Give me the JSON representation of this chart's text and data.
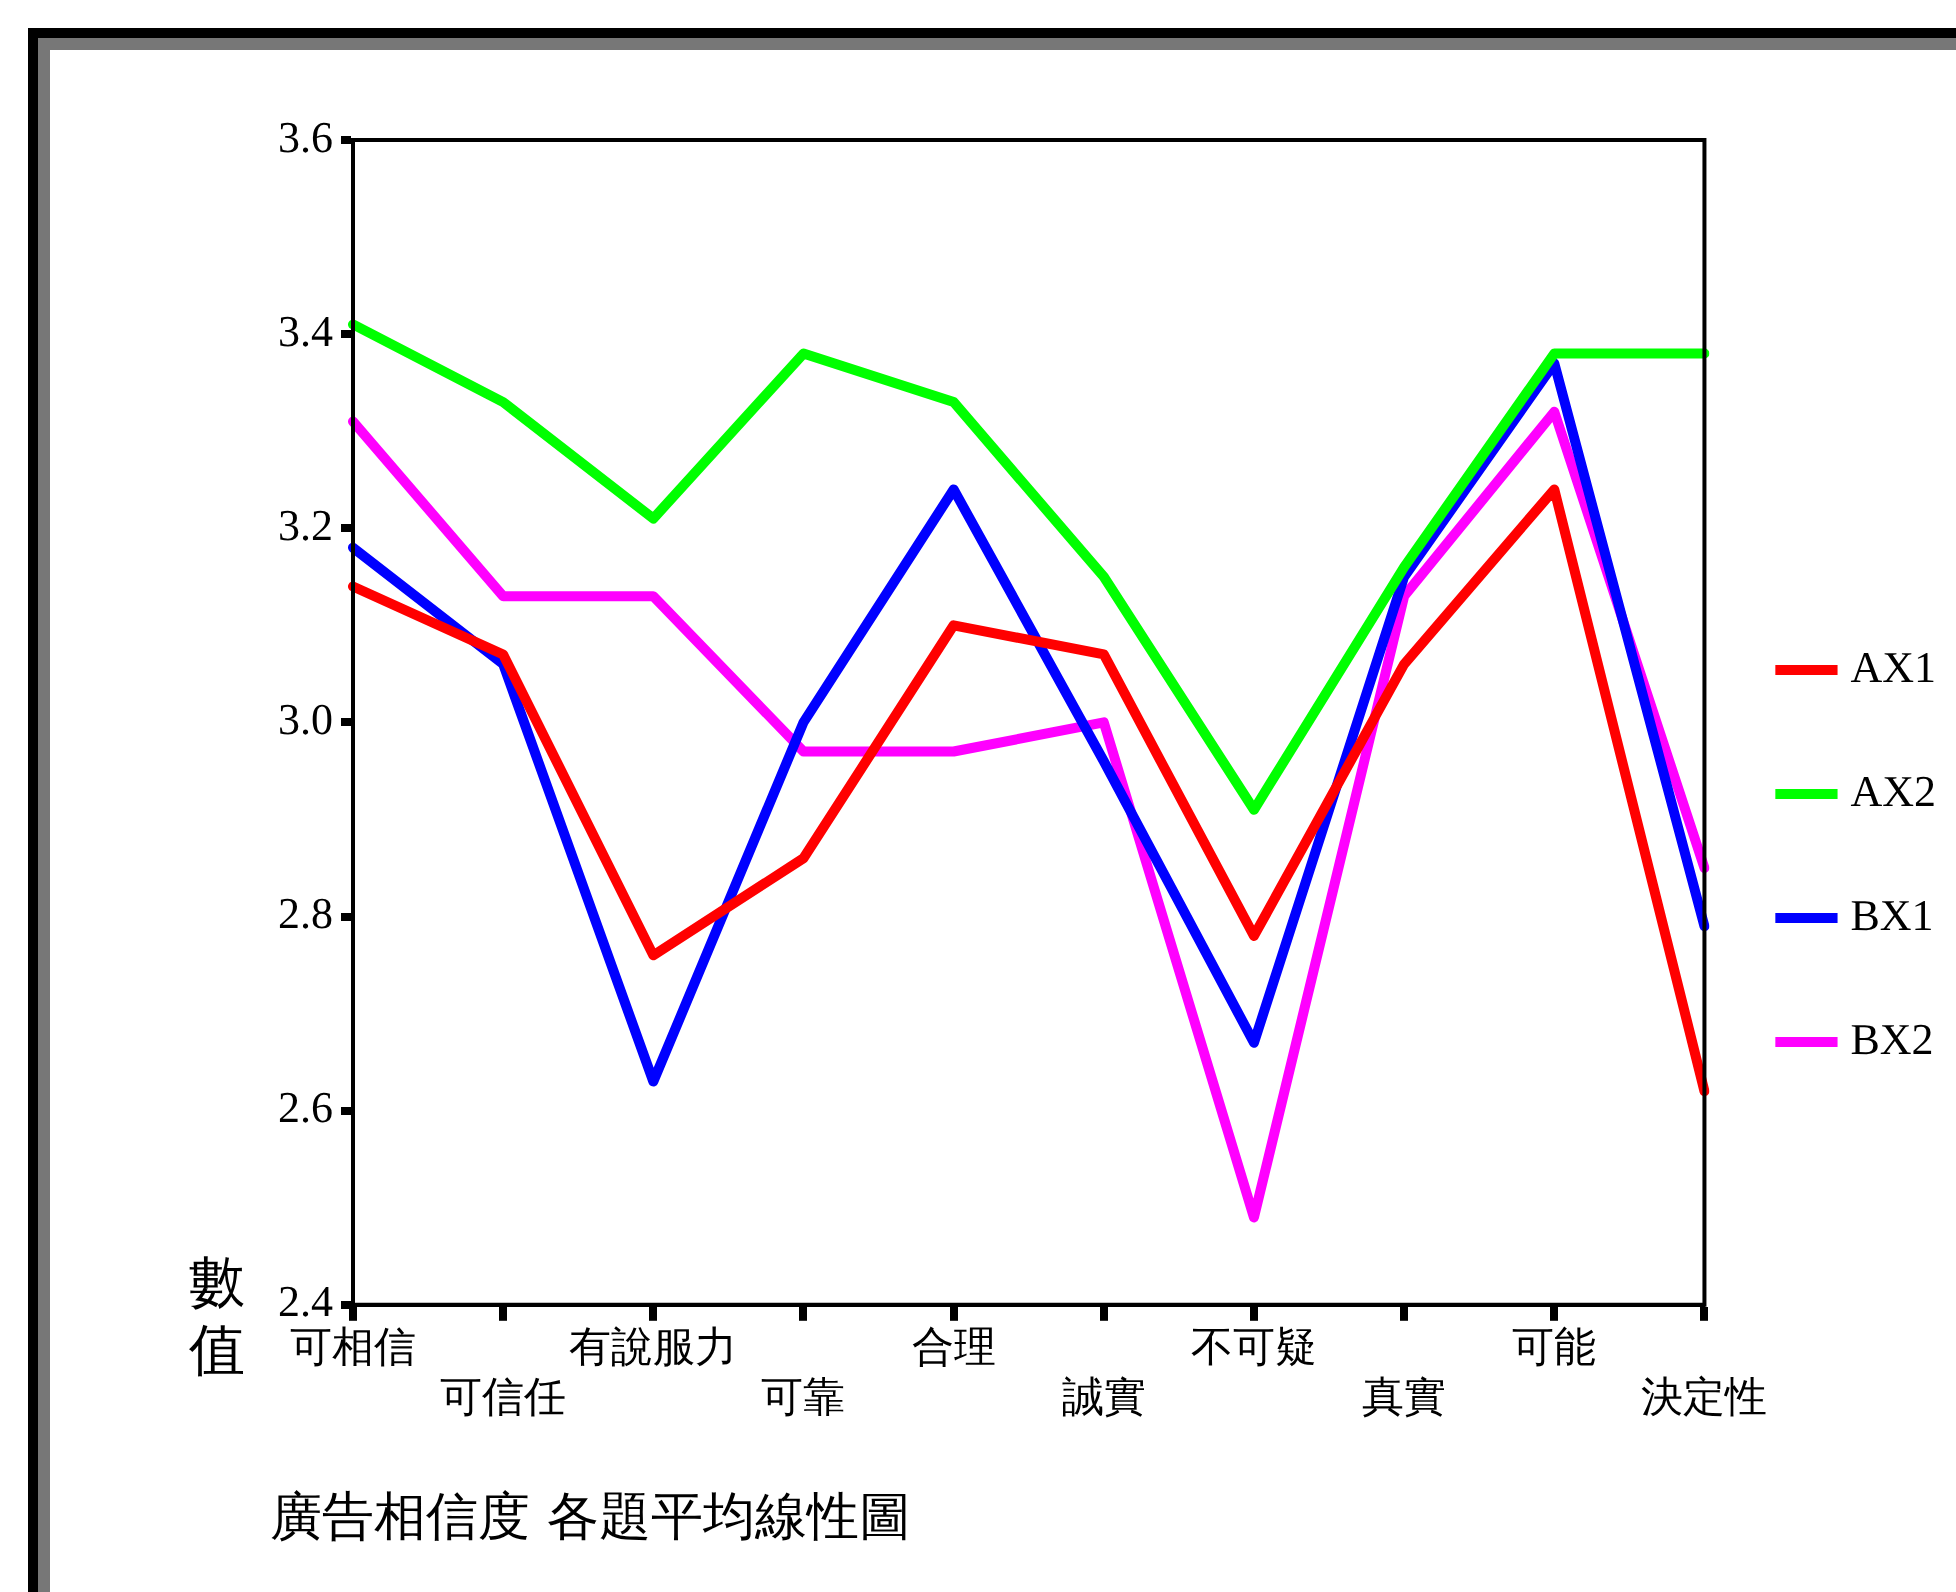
{
  "chart_data": {
    "type": "line",
    "title": "廣告相信度 各題平均線性圖",
    "ylabel": "數值",
    "categories": [
      "可相信",
      "可信任",
      "有說服力",
      "可靠",
      "合理",
      "誠實",
      "不可疑",
      "真實",
      "可能",
      "決定性"
    ],
    "series": [
      {
        "name": "AX1",
        "color": "#ff0000",
        "values": [
          3.14,
          3.07,
          2.76,
          2.86,
          3.1,
          3.07,
          2.78,
          3.06,
          3.24,
          2.62
        ]
      },
      {
        "name": "AX2",
        "color": "#00ff00",
        "values": [
          3.41,
          3.33,
          3.21,
          3.38,
          3.33,
          3.15,
          2.91,
          3.16,
          3.38,
          3.38
        ]
      },
      {
        "name": "BX1",
        "color": "#0000ff",
        "values": [
          3.18,
          3.06,
          2.63,
          3.0,
          3.24,
          2.96,
          2.67,
          3.15,
          3.37,
          2.79
        ]
      },
      {
        "name": "BX2",
        "color": "#ff00ff",
        "values": [
          3.31,
          3.13,
          3.13,
          2.97,
          2.97,
          3.0,
          2.49,
          3.13,
          3.32,
          2.85
        ]
      }
    ],
    "ylim": [
      2.4,
      3.6
    ],
    "yticks": [
      {
        "value": 2.4,
        "label": "2.4"
      },
      {
        "value": 2.6,
        "label": "2.6"
      },
      {
        "value": 2.8,
        "label": "2.8"
      },
      {
        "value": 3.0,
        "label": "3.0"
      },
      {
        "value": 3.2,
        "label": "3.2"
      },
      {
        "value": 3.4,
        "label": "3.4"
      },
      {
        "value": 3.6,
        "label": "3.6"
      }
    ],
    "grid": false,
    "legend": "right",
    "marker": "none",
    "line_style": "solid"
  }
}
